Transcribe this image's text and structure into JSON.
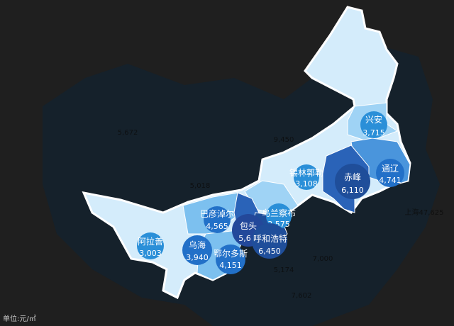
{
  "unit_label": "单位:元/㎡",
  "colors": {
    "background": "#1f1f1f",
    "china": "#16232e",
    "light": "#d4ecfb",
    "mid": "#7cc0ef",
    "dark": "#2a63b8",
    "darkest": "#1f4e9a",
    "bubble": "#2a8fd8"
  },
  "background_labels": [
    {
      "text": "5,672"
    },
    {
      "text": "5,018"
    },
    {
      "text": "9,450"
    },
    {
      "text": "5,174"
    },
    {
      "text": "7,000"
    },
    {
      "text": "7,602"
    },
    {
      "text": "上海47,625"
    }
  ],
  "cities": [
    {
      "name": "兴安",
      "value": "3,715"
    },
    {
      "name": "通辽",
      "value": "4,741"
    },
    {
      "name": "赤峰",
      "value": "6,110"
    },
    {
      "name": "锡林郭勒",
      "value": "3,108"
    },
    {
      "name": "乌兰察布",
      "value": "3,575"
    },
    {
      "name": "巴彦淖尔",
      "value": "4,565"
    },
    {
      "name": "包头",
      "value": "5,6"
    },
    {
      "name": "呼和浩特",
      "value": "6,450"
    },
    {
      "name": "阿拉善",
      "value": "3,003"
    },
    {
      "name": "乌海",
      "value": "3,940"
    },
    {
      "name": "鄂尔多斯",
      "value": "4,151"
    }
  ]
}
